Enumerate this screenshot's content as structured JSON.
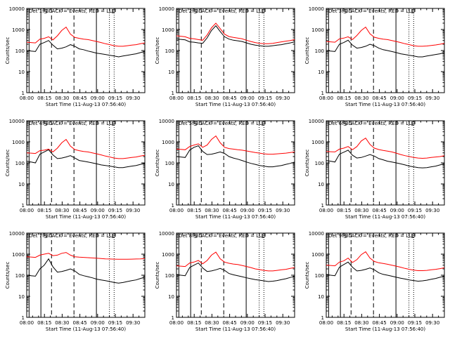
{
  "figure": {
    "ylabel": "Counts/sec",
    "xlabel": "Start Time (11-Aug-13 07:56:40)",
    "legend_text": "BLACK = Events, RED = LLD"
  },
  "chart_data": [
    {
      "type": "line",
      "title": "Det 1f BLACK = Events, RED = LLD",
      "xlabel": "Start Time (11-Aug-13 07:56:40)",
      "ylabel": "Counts/sec",
      "yscale": "log",
      "ylim": [
        1,
        10000
      ],
      "xticks": [
        "08:00",
        "08:15",
        "08:30",
        "08:45",
        "09:00",
        "09:15",
        "09:30"
      ],
      "yticks": [
        "1",
        "10",
        "100",
        "1000",
        "10000"
      ],
      "markers": {
        "solid": [
          "08:02",
          "08:12",
          "08:59"
        ],
        "dashed": [
          "08:21",
          "08:40"
        ],
        "dotted": [
          "09:10",
          "09:14"
        ],
        "letters": [
          "S",
          "E"
        ]
      },
      "series": [
        {
          "name": "Events",
          "color": "#000000",
          "values": [
            100,
            95,
            90,
            200,
            240,
            300,
            180,
            120,
            130,
            150,
            190,
            160,
            120,
            110,
            95,
            85,
            75,
            70,
            65,
            60,
            55,
            50,
            55,
            60,
            65,
            70,
            80,
            90
          ]
        },
        {
          "name": "LLD",
          "color": "#ff0000",
          "values": [
            250,
            240,
            230,
            350,
            380,
            450,
            320,
            500,
            900,
            1300,
            600,
            420,
            380,
            350,
            330,
            300,
            270,
            240,
            210,
            190,
            170,
            160,
            160,
            170,
            180,
            190,
            210,
            230
          ]
        }
      ]
    },
    {
      "type": "line",
      "title": "Det 2f BLACK = Events, RED = LLD",
      "xlabel": "Start Time (11-Aug-13 07:56:40)",
      "ylabel": "Counts/sec",
      "yscale": "log",
      "ylim": [
        1,
        10000
      ],
      "xticks": [
        "08:00",
        "08:15",
        "08:30",
        "08:45",
        "09:00",
        "09:15",
        "09:30"
      ],
      "yticks": [
        "1",
        "10",
        "100",
        "1000",
        "10000"
      ],
      "markers": {
        "solid": [
          "08:02",
          "08:12",
          "08:59"
        ],
        "dashed": [
          "08:21",
          "08:40"
        ],
        "dotted": [
          "09:10",
          "09:14"
        ],
        "letters": [
          "S",
          "E"
        ]
      },
      "series": [
        {
          "name": "Events",
          "color": "#000000",
          "values": [
            350,
            340,
            320,
            260,
            250,
            230,
            220,
            400,
            900,
            1500,
            800,
            450,
            350,
            310,
            290,
            270,
            230,
            200,
            180,
            170,
            160,
            160,
            170,
            180,
            190,
            210,
            230,
            260
          ]
        },
        {
          "name": "LLD",
          "color": "#ff0000",
          "values": [
            500,
            480,
            450,
            380,
            360,
            330,
            310,
            550,
            1200,
            2000,
            1100,
            600,
            460,
            420,
            390,
            360,
            310,
            270,
            240,
            220,
            210,
            210,
            220,
            240,
            260,
            280,
            300,
            330
          ]
        }
      ]
    },
    {
      "type": "line",
      "title": "Det 3f BLACK = Events, RED = LLD",
      "xlabel": "Start Time (11-Aug-13 07:56:40)",
      "ylabel": "Counts/sec",
      "yscale": "log",
      "ylim": [
        1,
        10000
      ],
      "xticks": [
        "08:00",
        "08:15",
        "08:30",
        "08:45",
        "09:00",
        "09:15",
        "09:30"
      ],
      "yticks": [
        "1",
        "10",
        "100",
        "1000",
        "10000"
      ],
      "markers": {
        "solid": [
          "08:02",
          "08:12",
          "08:59"
        ],
        "dashed": [
          "08:21",
          "08:40"
        ],
        "dotted": [
          "09:10",
          "09:14"
        ],
        "letters": [
          "S",
          "E"
        ]
      },
      "series": [
        {
          "name": "Events",
          "color": "#000000",
          "values": [
            100,
            95,
            90,
            200,
            240,
            310,
            180,
            130,
            140,
            160,
            200,
            170,
            130,
            110,
            100,
            90,
            80,
            70,
            65,
            60,
            55,
            50,
            50,
            55,
            60,
            65,
            70,
            80
          ]
        },
        {
          "name": "LLD",
          "color": "#ff0000",
          "values": [
            270,
            260,
            250,
            360,
            390,
            450,
            330,
            520,
            900,
            1300,
            620,
            430,
            380,
            350,
            330,
            300,
            270,
            240,
            210,
            190,
            170,
            160,
            160,
            165,
            175,
            185,
            200,
            220
          ]
        }
      ]
    },
    {
      "type": "line",
      "title": "Det 4f BLACK = Events, RED = LLD",
      "xlabel": "Start Time (11-Aug-13 07:56:40)",
      "ylabel": "Counts/sec",
      "yscale": "log",
      "ylim": [
        1,
        10000
      ],
      "xticks": [
        "08:00",
        "08:15",
        "08:30",
        "08:45",
        "09:00",
        "09:15",
        "09:30"
      ],
      "yticks": [
        "1",
        "10",
        "100",
        "1000",
        "10000"
      ],
      "markers": {
        "solid": [
          "08:02",
          "08:12",
          "08:59"
        ],
        "dashed": [
          "08:21",
          "08:40"
        ],
        "dotted": [
          "09:10",
          "09:14"
        ],
        "letters": [
          "S",
          "E"
        ]
      },
      "series": [
        {
          "name": "Events",
          "color": "#000000",
          "values": [
            120,
            110,
            100,
            260,
            330,
            420,
            240,
            160,
            170,
            190,
            220,
            170,
            130,
            120,
            110,
            100,
            90,
            80,
            75,
            70,
            65,
            60,
            60,
            65,
            70,
            75,
            85,
            95
          ]
        },
        {
          "name": "LLD",
          "color": "#ff0000",
          "values": [
            300,
            290,
            280,
            380,
            400,
            450,
            330,
            500,
            900,
            1300,
            620,
            430,
            380,
            350,
            330,
            300,
            270,
            240,
            210,
            190,
            170,
            160,
            160,
            170,
            180,
            190,
            210,
            230
          ]
        }
      ]
    },
    {
      "type": "line",
      "title": "Det 5f BLACK = Events, RED = LLD",
      "xlabel": "Start Time (11-Aug-13 07:56:40)",
      "ylabel": "Counts/sec",
      "yscale": "log",
      "ylim": [
        1,
        10000
      ],
      "xticks": [
        "08:00",
        "08:15",
        "08:30",
        "08:45",
        "09:00",
        "09:15",
        "09:30"
      ],
      "yticks": [
        "1",
        "10",
        "100",
        "1000",
        "10000"
      ],
      "markers": {
        "solid": [
          "08:02",
          "08:12",
          "08:59"
        ],
        "dashed": [
          "08:21",
          "08:40"
        ],
        "dotted": [
          "09:10",
          "09:14"
        ],
        "letters": [
          "S",
          "E"
        ]
      },
      "series": [
        {
          "name": "Events",
          "color": "#000000",
          "values": [
            200,
            190,
            180,
            400,
            550,
            650,
            350,
            250,
            260,
            290,
            330,
            280,
            200,
            170,
            150,
            130,
            110,
            95,
            85,
            75,
            70,
            65,
            65,
            70,
            75,
            85,
            95,
            110
          ]
        },
        {
          "name": "LLD",
          "color": "#ff0000",
          "values": [
            450,
            440,
            420,
            600,
            700,
            800,
            550,
            700,
            1300,
            1900,
            900,
            550,
            480,
            450,
            420,
            400,
            370,
            340,
            310,
            290,
            270,
            260,
            260,
            270,
            280,
            290,
            310,
            330
          ]
        }
      ]
    },
    {
      "type": "line",
      "title": "Det 6f BLACK = Events, RED = LLD",
      "xlabel": "Start Time (11-Aug-13 07:56:40)",
      "ylabel": "Counts/sec",
      "yscale": "log",
      "ylim": [
        1,
        10000
      ],
      "xticks": [
        "08:00",
        "08:15",
        "08:30",
        "08:45",
        "09:00",
        "09:15",
        "09:30"
      ],
      "yticks": [
        "1",
        "10",
        "100",
        "1000",
        "10000"
      ],
      "markers": {
        "solid": [
          "08:02",
          "08:12",
          "08:59"
        ],
        "dashed": [
          "08:21",
          "08:40"
        ],
        "dotted": [
          "09:10",
          "09:14"
        ],
        "letters": [
          "S",
          "E"
        ]
      },
      "series": [
        {
          "name": "Events",
          "color": "#000000",
          "values": [
            130,
            120,
            110,
            260,
            320,
            400,
            230,
            170,
            180,
            210,
            250,
            210,
            160,
            140,
            120,
            110,
            100,
            90,
            80,
            70,
            65,
            60,
            58,
            60,
            65,
            70,
            80,
            90
          ]
        },
        {
          "name": "LLD",
          "color": "#ff0000",
          "values": [
            350,
            340,
            330,
            450,
            500,
            600,
            420,
            600,
            1100,
            1500,
            750,
            500,
            430,
            390,
            360,
            330,
            290,
            250,
            220,
            200,
            180,
            170,
            165,
            170,
            180,
            190,
            200,
            220
          ]
        }
      ]
    },
    {
      "type": "line",
      "title": "Det 7f BLACK = Events, RED = LLD",
      "xlabel": "Start Time (11-Aug-13 07:56:40)",
      "ylabel": "Counts/sec",
      "yscale": "log",
      "ylim": [
        1,
        10000
      ],
      "xticks": [
        "08:00",
        "08:15",
        "08:30",
        "08:45",
        "09:00",
        "09:15",
        "09:30"
      ],
      "yticks": [
        "1",
        "10",
        "100",
        "1000",
        "10000"
      ],
      "markers": {
        "solid": [
          "08:02",
          "08:12",
          "08:59"
        ],
        "dashed": [
          "08:21",
          "08:40"
        ],
        "dotted": [
          "09:10",
          "09:14"
        ],
        "letters": [
          "S",
          "E"
        ]
      },
      "series": [
        {
          "name": "Events",
          "color": "#000000",
          "values": [
            100,
            95,
            90,
            200,
            300,
            600,
            250,
            140,
            150,
            170,
            200,
            160,
            110,
            95,
            85,
            75,
            65,
            60,
            55,
            50,
            45,
            42,
            45,
            50,
            55,
            60,
            70,
            80
          ]
        },
        {
          "name": "LLD",
          "color": "#ff0000",
          "values": [
            750,
            730,
            700,
            900,
            1000,
            1100,
            850,
            900,
            1100,
            1200,
            900,
            750,
            720,
            700,
            680,
            660,
            640,
            620,
            600,
            590,
            580,
            570,
            570,
            575,
            580,
            590,
            600,
            620
          ]
        }
      ]
    },
    {
      "type": "line",
      "title": "Det 8f BLACK = Events, RED = LLD",
      "xlabel": "Start Time (11-Aug-13 07:56:40)",
      "ylabel": "Counts/sec",
      "yscale": "log",
      "ylim": [
        1,
        10000
      ],
      "xticks": [
        "08:00",
        "08:15",
        "08:30",
        "08:45",
        "09:00",
        "09:15",
        "09:30"
      ],
      "yticks": [
        "1",
        "10",
        "100",
        "1000",
        "10000"
      ],
      "markers": {
        "solid": [
          "08:02",
          "08:12",
          "08:59"
        ],
        "dashed": [
          "08:21",
          "08:40"
        ],
        "dotted": [
          "09:10",
          "09:14"
        ],
        "letters": [
          "S",
          "E"
        ]
      },
      "series": [
        {
          "name": "Events",
          "color": "#000000",
          "values": [
            110,
            100,
            95,
            230,
            300,
            380,
            220,
            150,
            160,
            180,
            210,
            170,
            120,
            105,
            95,
            85,
            75,
            68,
            62,
            58,
            54,
            50,
            52,
            56,
            62,
            68,
            78,
            88
          ]
        },
        {
          "name": "LLD",
          "color": "#ff0000",
          "values": [
            280,
            270,
            260,
            380,
            420,
            500,
            350,
            500,
            900,
            1250,
            600,
            420,
            370,
            340,
            320,
            290,
            260,
            230,
            200,
            185,
            170,
            160,
            160,
            170,
            180,
            190,
            210,
            230
          ]
        }
      ]
    },
    {
      "type": "line",
      "title": "Det 9f BLACK = Events, RED = LLD",
      "xlabel": "Start Time (11-Aug-13 07:56:40)",
      "ylabel": "Counts/sec",
      "yscale": "log",
      "ylim": [
        1,
        10000
      ],
      "xticks": [
        "08:00",
        "08:15",
        "08:30",
        "08:45",
        "09:00",
        "09:15",
        "09:30"
      ],
      "yticks": [
        "1",
        "10",
        "100",
        "1000",
        "10000"
      ],
      "markers": {
        "solid": [
          "08:02",
          "08:12",
          "08:59"
        ],
        "dashed": [
          "08:21",
          "08:40"
        ],
        "dotted": [
          "09:10",
          "09:14"
        ],
        "letters": [
          "S",
          "E"
        ]
      },
      "series": [
        {
          "name": "Events",
          "color": "#000000",
          "values": [
            110,
            100,
            95,
            240,
            320,
            420,
            240,
            160,
            170,
            190,
            220,
            180,
            130,
            110,
            100,
            90,
            80,
            72,
            66,
            60,
            56,
            52,
            54,
            58,
            64,
            70,
            80,
            90
          ]
        },
        {
          "name": "LLD",
          "color": "#ff0000",
          "values": [
            300,
            290,
            280,
            420,
            480,
            650,
            400,
            550,
            950,
            1300,
            650,
            450,
            390,
            360,
            330,
            300,
            270,
            240,
            210,
            190,
            175,
            165,
            165,
            170,
            180,
            190,
            205,
            225
          ]
        }
      ]
    }
  ]
}
